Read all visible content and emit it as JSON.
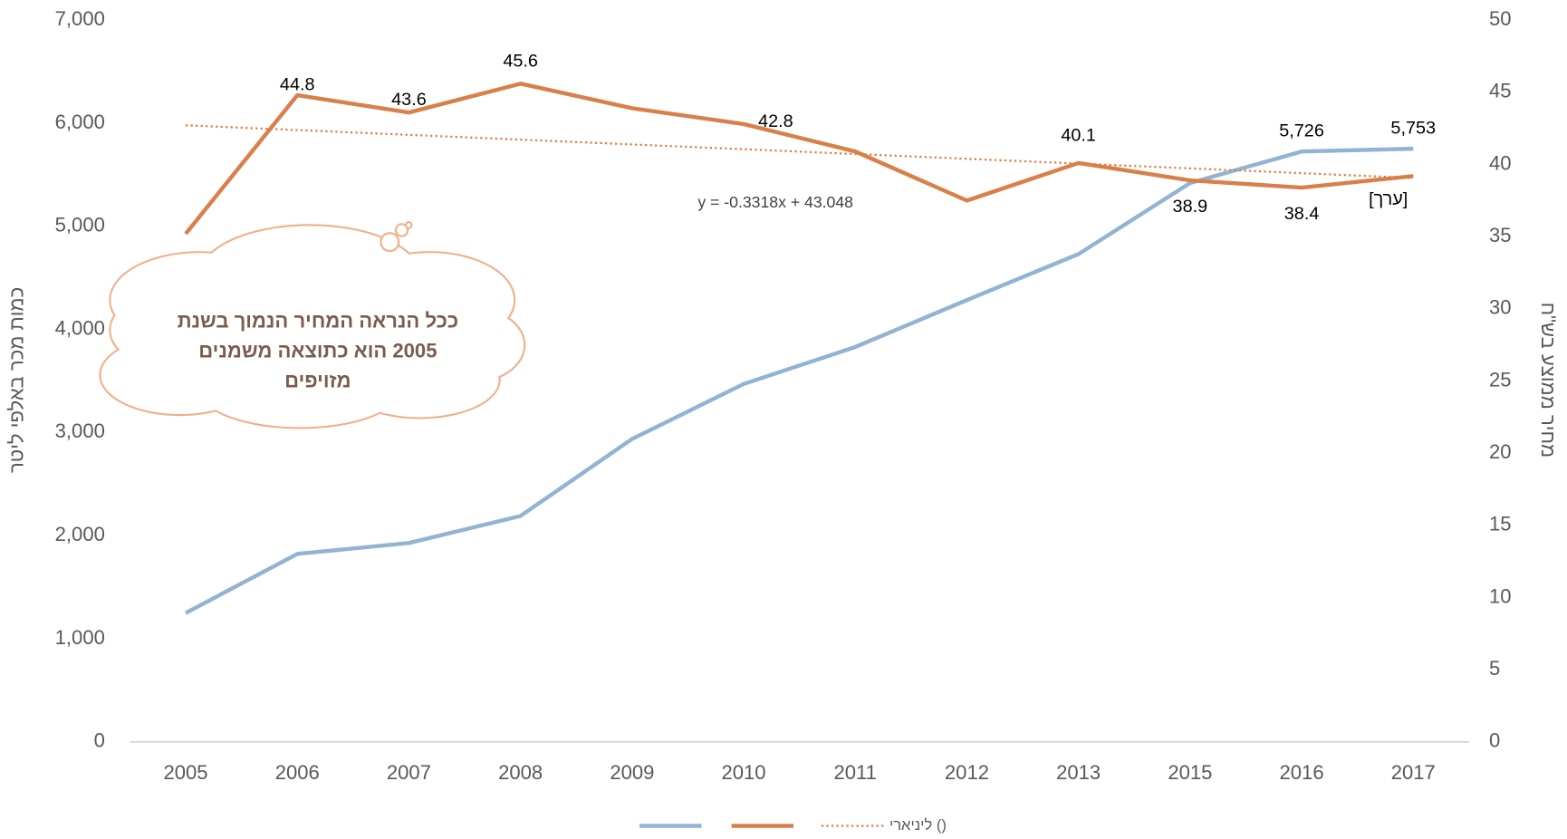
{
  "chart_data": {
    "type": "line",
    "categories": [
      "2005",
      "2006",
      "2007",
      "2008",
      "2009",
      "2010",
      "2011",
      "2012",
      "2013",
      "2015",
      "2016",
      "2017"
    ],
    "y_label": "כמות מכר באלפי ליטר",
    "y2_label": "מחיר ממוצע בש\"ח",
    "ylim": [
      0,
      7000
    ],
    "yticks": [
      0,
      {
        "value": 1000,
        "label": "1,000"
      },
      {
        "value": 2000,
        "label": "2,000"
      },
      {
        "value": 3000,
        "label": "3,000"
      },
      {
        "value": 4000,
        "label": "4,000"
      },
      {
        "value": 5000,
        "label": "5,000"
      },
      {
        "value": 6000,
        "label": "6,000"
      },
      {
        "value": 7000,
        "label": "7,000"
      }
    ],
    "y2lim": [
      0,
      50
    ],
    "y2ticks": [
      0,
      5,
      10,
      15,
      20,
      25,
      30,
      35,
      40,
      45,
      50
    ],
    "grid": false,
    "series": [
      {
        "color": "#93b3d3",
        "axis": "y",
        "values": [
          1250,
          1823,
          1929,
          2191,
          2938,
          3471,
          3830,
          4285,
          4731,
          5420,
          5726,
          5753
        ],
        "value_labels": [
          null,
          null,
          null,
          null,
          null,
          null,
          null,
          null,
          null,
          null,
          "5,726",
          "5,753"
        ]
      },
      {
        "color": "#d9804a",
        "axis": "y2",
        "values": [
          35.2,
          44.8,
          43.6,
          45.6,
          43.9,
          42.8,
          40.9,
          37.5,
          40.1,
          38.9,
          38.4,
          39.2
        ],
        "value_labels": [
          null,
          "44.8",
          "43.6",
          "45.6",
          null,
          "42.8",
          null,
          null,
          "40.1",
          "38.9",
          "38.4",
          "[ערך]"
        ]
      },
      {
        "name": "ליניארי ()",
        "color": "#e07a3a",
        "axis": "y2",
        "style": "dotted",
        "equation": "y = -0.3318x + 43.048",
        "values": [
          42.716,
          42.385,
          42.053,
          41.721,
          41.389,
          41.057,
          40.725,
          40.394,
          40.062,
          39.73,
          39.398,
          39.066
        ]
      }
    ],
    "annotation": [
      "ככל הנראה המחיר הנמוך בשנת",
      "2005 הוא כתוצאה משמנים",
      "מזויפים"
    ]
  }
}
